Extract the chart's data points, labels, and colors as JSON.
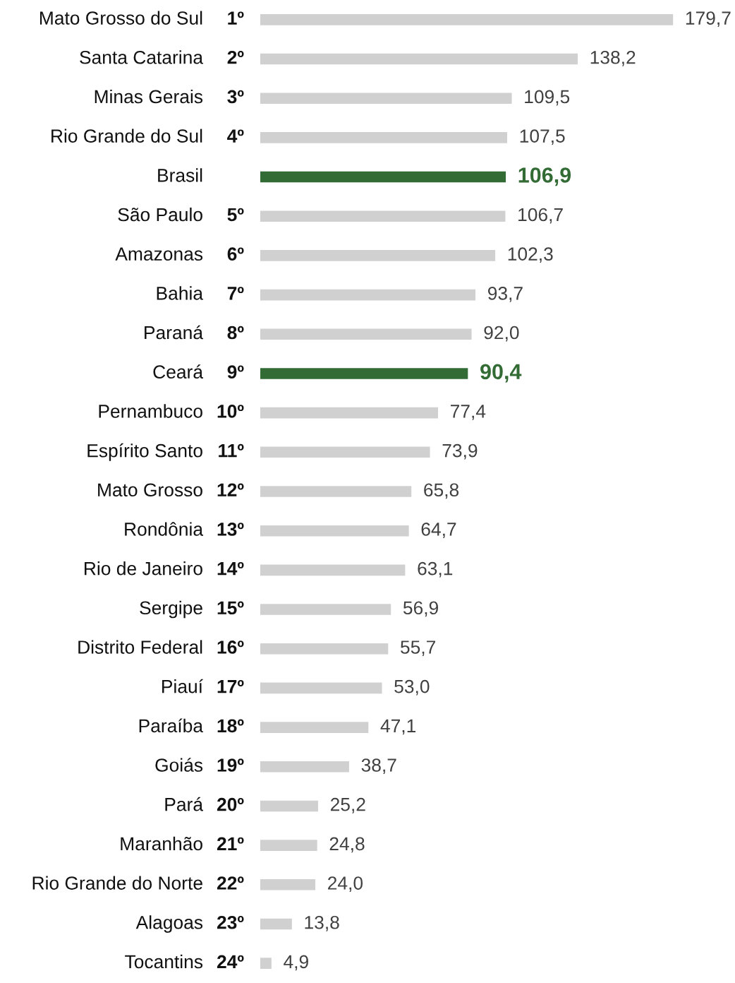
{
  "chart_data": {
    "type": "bar",
    "orientation": "horizontal",
    "categories": [
      "Mato Grosso do Sul",
      "Santa Catarina",
      "Minas Gerais",
      "Rio Grande do Sul",
      "Brasil",
      "São Paulo",
      "Amazonas",
      "Bahia",
      "Paraná",
      "Ceará",
      "Pernambuco",
      "Espírito Santo",
      "Mato Grosso",
      "Rondônia",
      "Rio de Janeiro",
      "Sergipe",
      "Distrito Federal",
      "Piauí",
      "Paraíba",
      "Goiás",
      "Pará",
      "Maranhão",
      "Rio Grande do Norte",
      "Alagoas",
      "Tocantins"
    ],
    "values": [
      179.7,
      138.2,
      109.5,
      107.5,
      106.9,
      106.7,
      102.3,
      93.7,
      92.0,
      90.4,
      77.4,
      73.9,
      65.8,
      64.7,
      63.1,
      56.9,
      55.7,
      53.0,
      47.1,
      38.7,
      25.2,
      24.8,
      24.0,
      13.8,
      4.9
    ],
    "value_labels": [
      "179,7",
      "138,2",
      "109,5",
      "107,5",
      "106,9",
      "106,7",
      "102,3",
      "93,7",
      "92,0",
      "90,4",
      "77,4",
      "73,9",
      "65,8",
      "64,7",
      "63,1",
      "56,9",
      "55,7",
      "53,0",
      "47,1",
      "38,7",
      "25,2",
      "24,8",
      "24,0",
      "13,8",
      "4,9"
    ],
    "colors": [
      "#d0d0d0",
      "#d0d0d0",
      "#d0d0d0",
      "#d0d0d0",
      "#336b35",
      "#d0d0d0",
      "#d0d0d0",
      "#d0d0d0",
      "#d0d0d0",
      "#336b35",
      "#d0d0d0",
      "#d0d0d0",
      "#d0d0d0",
      "#d0d0d0",
      "#d0d0d0",
      "#d0d0d0",
      "#d0d0d0",
      "#d0d0d0",
      "#d0d0d0",
      "#d0d0d0",
      "#d0d0d0",
      "#d0d0d0",
      "#d0d0d0",
      "#d0d0d0",
      "#d0d0d0"
    ],
    "annotations": [
      "1º",
      "2º",
      "3º",
      "4º",
      null,
      "5º",
      "6º",
      "7º",
      "8º",
      "9º",
      "10º",
      "11º",
      "12º",
      "13º",
      "14º",
      "15º",
      "16º",
      "17º",
      "18º",
      "19º",
      "20º",
      "21º",
      "22º",
      "23º",
      "24º"
    ]
  }
}
